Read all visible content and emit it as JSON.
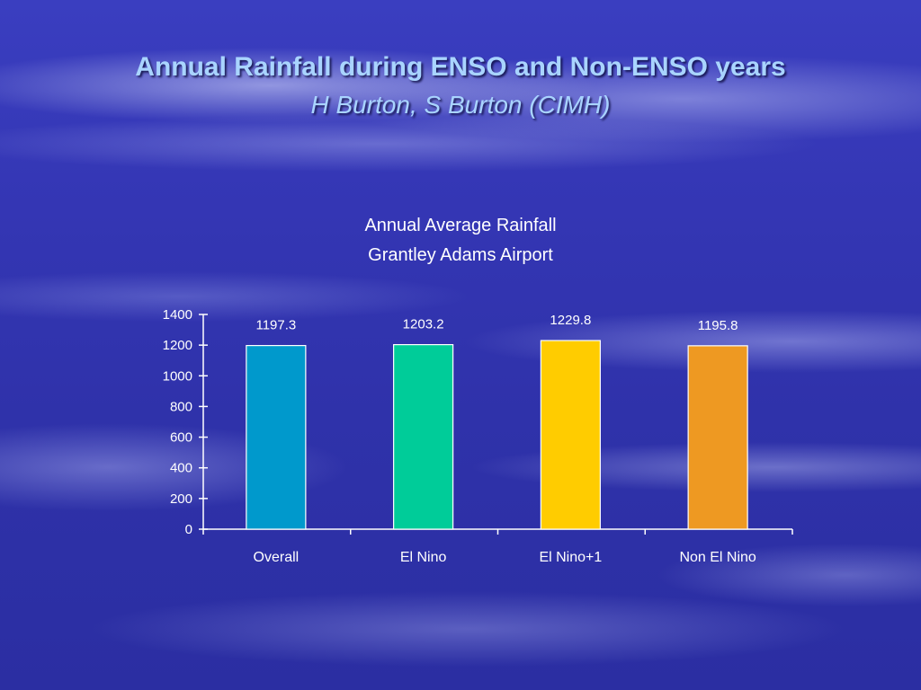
{
  "slide": {
    "title": "Annual Rainfall during ENSO and Non-ENSO years",
    "subtitle": "H Burton, S Burton (CIMH)"
  },
  "chart_data": {
    "type": "bar",
    "title": "Annual Average Rainfall",
    "subtitle": "Grantley Adams Airport",
    "categories": [
      "Overall",
      "El Nino",
      "El Nino+1",
      "Non El Nino"
    ],
    "values": [
      1197.3,
      1203.2,
      1229.8,
      1195.8
    ],
    "value_labels": [
      "1197.3",
      "1203.2",
      "1229.8",
      "1195.8"
    ],
    "colors": [
      "#0099cc",
      "#00cc99",
      "#ffcc00",
      "#ee9922"
    ],
    "ylim": [
      0,
      1400
    ],
    "yticks": [
      0,
      200,
      400,
      600,
      800,
      1000,
      1200,
      1400
    ],
    "xlabel": "",
    "ylabel": "",
    "grid": false,
    "legend": "none"
  }
}
